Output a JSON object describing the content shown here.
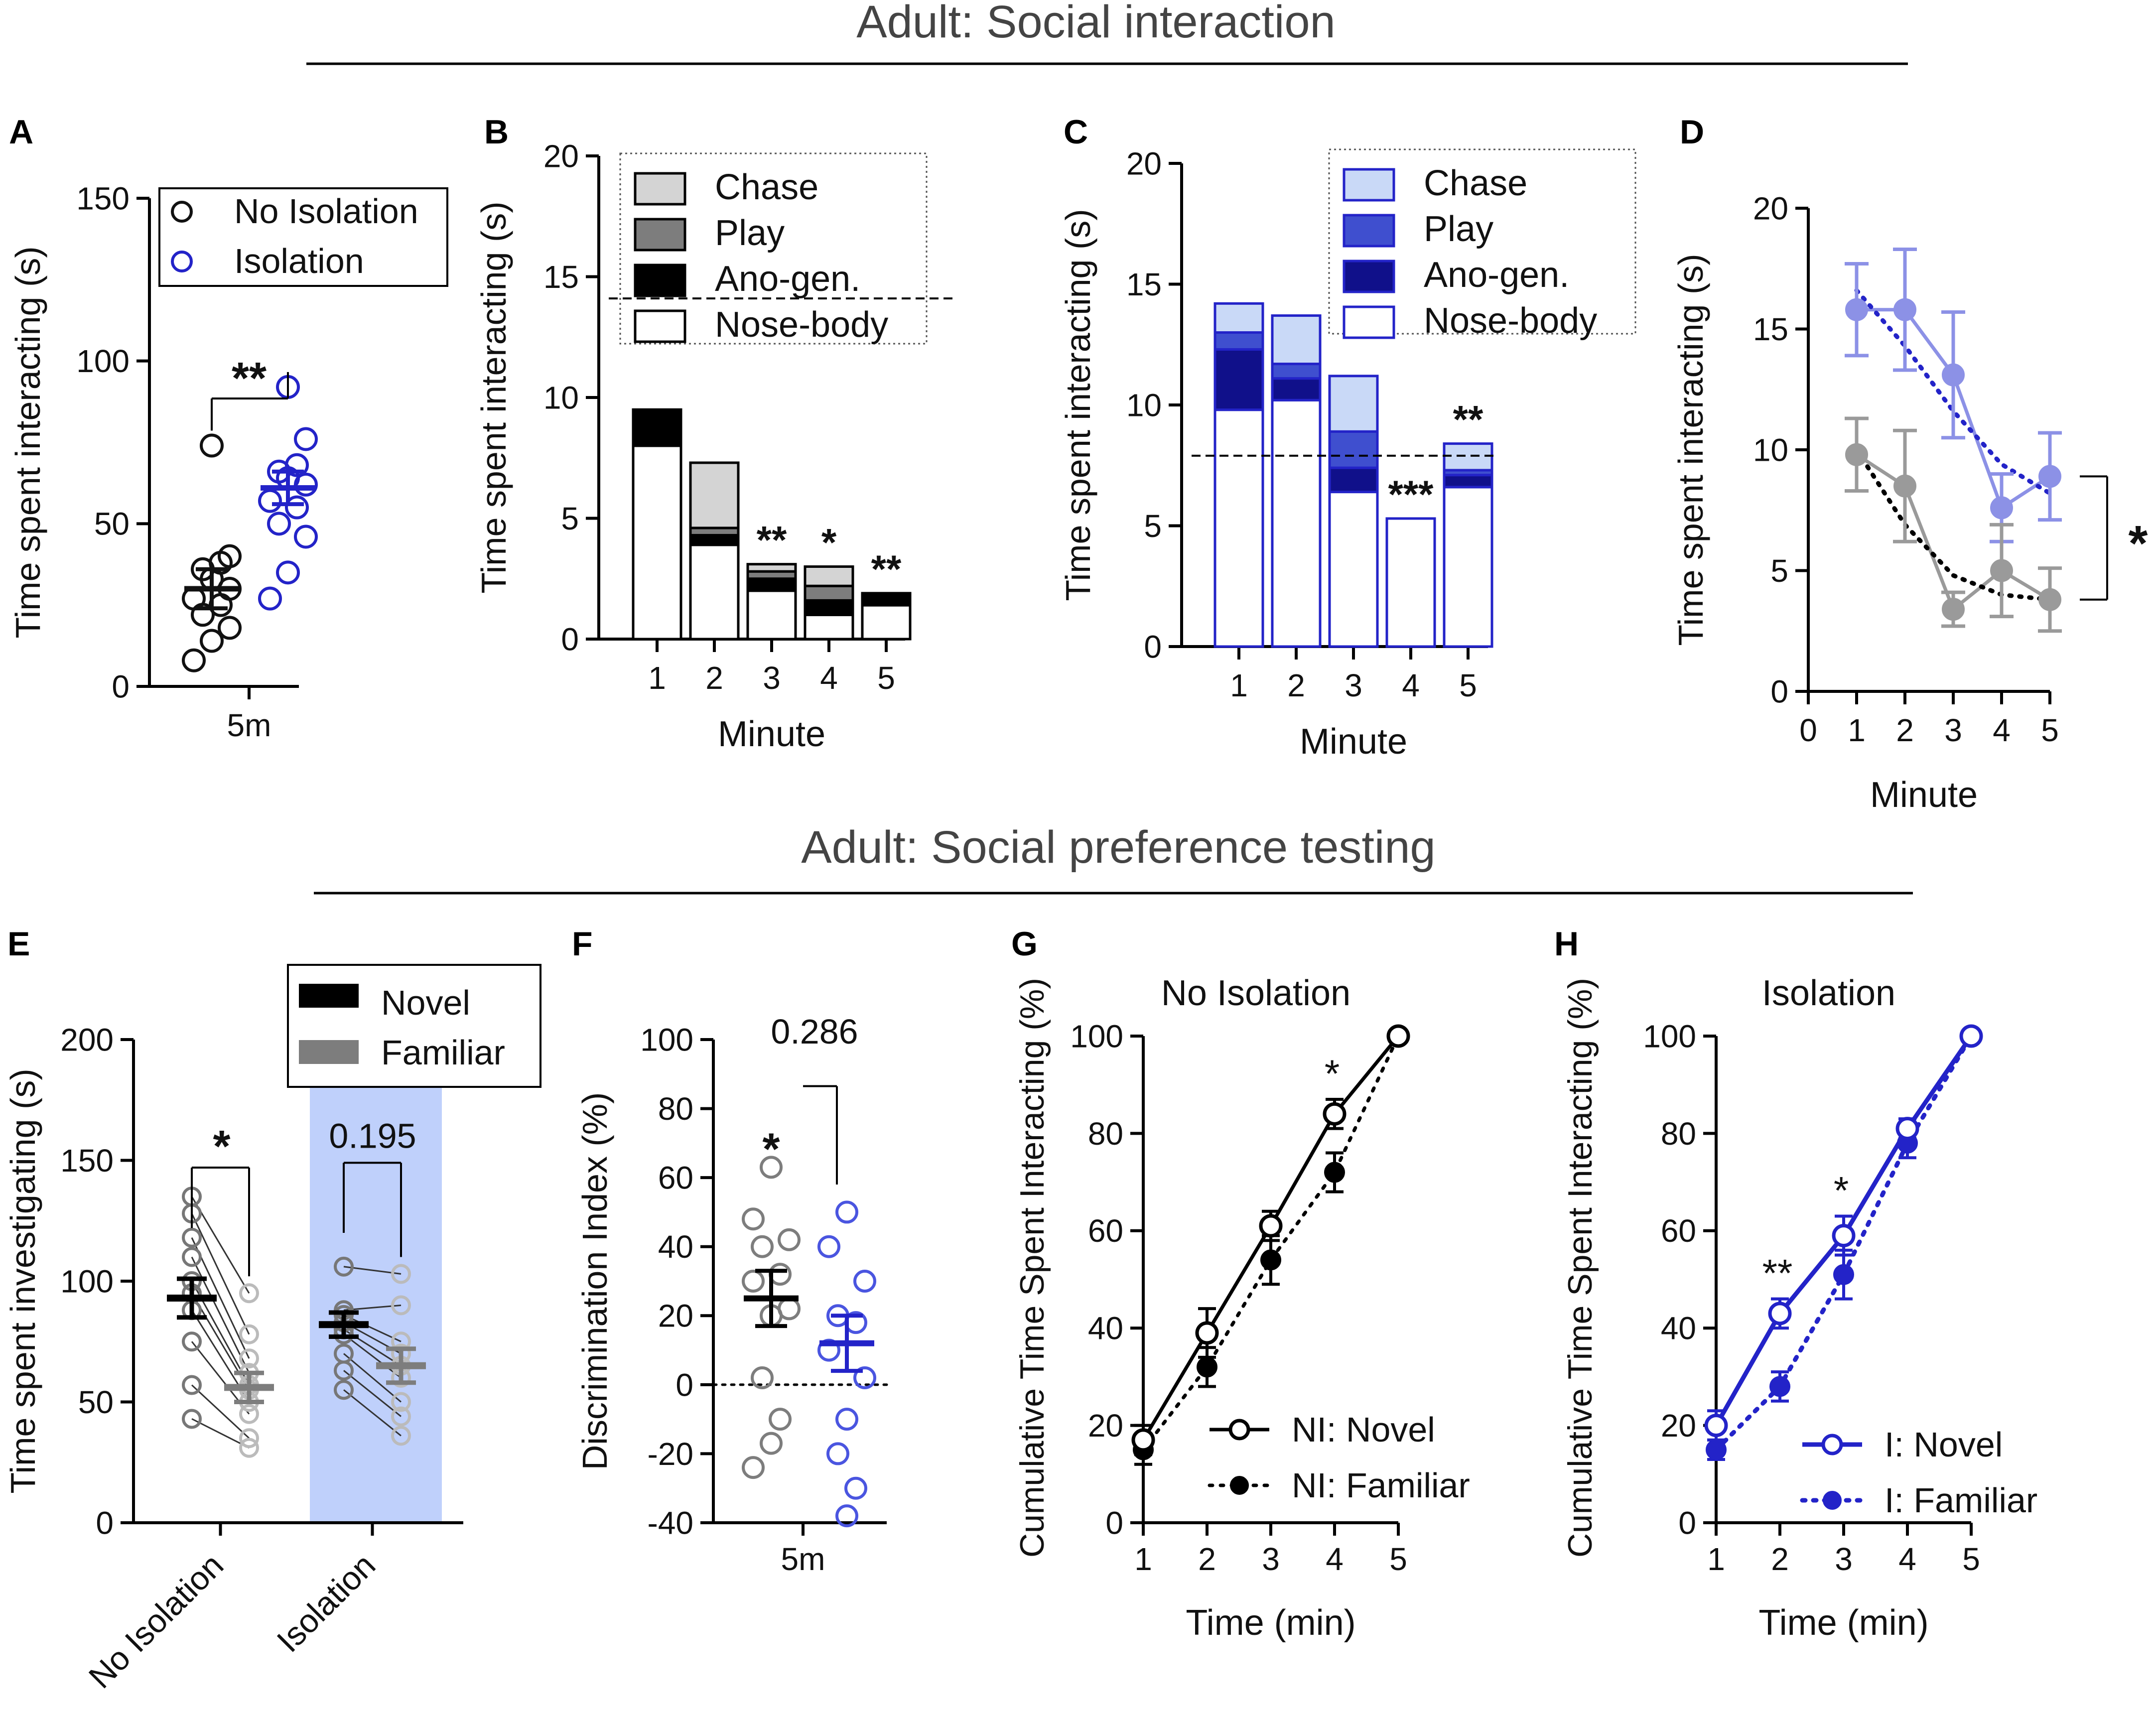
{
  "headings": {
    "top": "Adult: Social interaction",
    "bottom": "Adult: Social preference testing"
  },
  "colors": {
    "black": "#111111",
    "blue": "#2323c8",
    "blue_light": "#c9d9f7",
    "blue_mid": "#3f4fcf",
    "blue_dark": "#10108a",
    "blue_fade": "#8c91e6",
    "gray_light": "#d4d4d4",
    "gray_mid": "#7d7d7d",
    "gray_dot": "#9a9a9a",
    "band": "#bfd0fb"
  },
  "chart_data": [
    {
      "panel": "A",
      "type": "scatter",
      "xlabel": "5m",
      "ylabel": "Time spent interacting (s)",
      "ylim": [
        0,
        150
      ],
      "yticks": [
        0,
        50,
        100,
        150
      ],
      "legend": [
        "No Isolation",
        "Isolation"
      ],
      "significance": "**",
      "series": [
        {
          "name": "No Isolation",
          "values": [
            8,
            14,
            18,
            22,
            25,
            27,
            30,
            33,
            36,
            38,
            40,
            74
          ],
          "mean": 30,
          "sem": 6
        },
        {
          "name": "Isolation",
          "values": [
            27,
            35,
            46,
            50,
            55,
            57,
            62,
            64,
            66,
            68,
            76,
            92
          ],
          "mean": 61,
          "sem": 5
        }
      ]
    },
    {
      "panel": "B",
      "type": "bar",
      "stacked": true,
      "categories": [
        "1",
        "2",
        "3",
        "4",
        "5"
      ],
      "xlabel": "Minute",
      "ylabel": "Time spent interacting (s)",
      "ylim": [
        0,
        20
      ],
      "yticks": [
        0,
        5,
        10,
        15,
        20
      ],
      "reference_line": 14.1,
      "legend": [
        "Chase",
        "Play",
        "Ano-gen.",
        "Nose-body"
      ],
      "series": [
        {
          "name": "Nose-body",
          "values": [
            8.0,
            3.9,
            2.0,
            1.0,
            1.4
          ]
        },
        {
          "name": "Ano-gen.",
          "values": [
            1.5,
            0.4,
            0.5,
            0.6,
            0.5
          ]
        },
        {
          "name": "Play",
          "values": [
            0.0,
            0.3,
            0.3,
            0.6,
            0.0
          ]
        },
        {
          "name": "Chase",
          "values": [
            0.0,
            2.7,
            0.3,
            0.8,
            0.0
          ]
        }
      ],
      "annotations": [
        "",
        "",
        "**",
        "*",
        "**"
      ]
    },
    {
      "panel": "C",
      "type": "bar",
      "stacked": true,
      "categories": [
        "1",
        "2",
        "3",
        "4",
        "5"
      ],
      "xlabel": "Minute",
      "ylabel": "Time spent interacting (s)",
      "ylim": [
        0,
        20
      ],
      "yticks": [
        0,
        5,
        10,
        15,
        20
      ],
      "reference_line": 7.9,
      "legend": [
        "Chase",
        "Play",
        "Ano-gen.",
        "Nose-body"
      ],
      "series": [
        {
          "name": "Nose-body",
          "values": [
            9.8,
            10.2,
            6.4,
            5.3,
            6.6
          ]
        },
        {
          "name": "Ano-gen.",
          "values": [
            2.5,
            0.9,
            1.0,
            0.0,
            0.5
          ]
        },
        {
          "name": "Play",
          "values": [
            0.7,
            0.6,
            1.5,
            0.0,
            0.2
          ]
        },
        {
          "name": "Chase",
          "values": [
            1.2,
            2.0,
            2.3,
            0.0,
            1.1
          ]
        }
      ],
      "annotations": [
        "",
        "",
        "",
        "***",
        "**"
      ]
    },
    {
      "panel": "D",
      "type": "line",
      "xlabel": "Minute",
      "ylabel": "Time spent interacting (s)",
      "x": [
        1,
        2,
        3,
        4,
        5
      ],
      "xticks": [
        0,
        1,
        2,
        3,
        4,
        5
      ],
      "xlim": [
        0,
        5
      ],
      "ylim": [
        0,
        20
      ],
      "yticks": [
        0,
        5,
        10,
        15,
        20
      ],
      "significance": "*",
      "series": [
        {
          "name": "Isolation",
          "values": [
            15.8,
            15.8,
            13.1,
            7.6,
            8.9
          ],
          "err": [
            1.9,
            2.5,
            2.6,
            1.4,
            1.8
          ],
          "fit": [
            16.6,
            14.3,
            11.6,
            9.4,
            8.2
          ]
        },
        {
          "name": "No Isolation",
          "values": [
            9.8,
            8.5,
            3.4,
            5.0,
            3.8
          ],
          "err": [
            1.5,
            2.3,
            0.7,
            1.9,
            1.3
          ],
          "fit": [
            10.0,
            6.9,
            4.8,
            4.0,
            3.8
          ]
        }
      ]
    },
    {
      "panel": "E",
      "type": "scatter",
      "categories": [
        "No Isolation",
        "Isolation"
      ],
      "ylabel": "Time spent investigating (s)",
      "ylim": [
        0,
        200
      ],
      "yticks": [
        0,
        50,
        100,
        150,
        200
      ],
      "legend": [
        "Novel",
        "Familiar"
      ],
      "annotations": [
        "*",
        "0.195"
      ],
      "groups": [
        {
          "name": "No Isolation",
          "novel": [
            135,
            128,
            118,
            110,
            100,
            95,
            88,
            75,
            57,
            43
          ],
          "familiar": [
            95,
            78,
            68,
            62,
            57,
            55,
            50,
            45,
            35,
            31
          ],
          "novel_mean": 93,
          "novel_sem": 8,
          "familiar_mean": 56,
          "familiar_sem": 6
        },
        {
          "name": "Isolation",
          "novel": [
            106,
            88,
            86,
            83,
            80,
            78,
            70,
            63,
            55
          ],
          "familiar": [
            103,
            90,
            75,
            70,
            65,
            60,
            50,
            44,
            36
          ],
          "novel_mean": 82,
          "novel_sem": 5,
          "familiar_mean": 65,
          "familiar_sem": 7
        }
      ]
    },
    {
      "panel": "F",
      "type": "scatter",
      "xlabel": "5m",
      "ylabel": "Discrimination Index (%)",
      "ylim": [
        -40,
        100
      ],
      "yticks": [
        -40,
        -20,
        0,
        20,
        40,
        60,
        80,
        100
      ],
      "annotations": [
        "*",
        "0.286"
      ],
      "series": [
        {
          "name": "No Isolation",
          "values": [
            63,
            48,
            42,
            40,
            32,
            30,
            22,
            20,
            2,
            -10,
            -17,
            -24
          ],
          "mean": 25,
          "sem": 8
        },
        {
          "name": "Isolation",
          "values": [
            50,
            40,
            30,
            20,
            18,
            10,
            2,
            -10,
            -20,
            -30,
            -38
          ],
          "mean": 12,
          "sem": 8
        }
      ]
    },
    {
      "panel": "G",
      "type": "line",
      "title": "No Isolation",
      "xlabel": "Time (min)",
      "ylabel": "Cumulative Time Spent Interacting (%)",
      "x": [
        1,
        2,
        3,
        4,
        5
      ],
      "ylim": [
        0,
        100
      ],
      "yticks": [
        0,
        20,
        40,
        60,
        80,
        100
      ],
      "annotations": [
        "",
        "",
        "",
        "*",
        ""
      ],
      "series": [
        {
          "name": "NI: Novel",
          "values": [
            17,
            39,
            61,
            84,
            100
          ],
          "err": [
            3,
            5,
            3,
            3,
            0
          ]
        },
        {
          "name": "NI: Familiar",
          "values": [
            15,
            32,
            54,
            72,
            100
          ],
          "err": [
            3,
            4,
            5,
            4,
            0
          ]
        }
      ]
    },
    {
      "panel": "H",
      "type": "line",
      "title": "Isolation",
      "xlabel": "Time (min)",
      "ylabel": "Cumulative Time Spent Interacting (%)",
      "x": [
        1,
        2,
        3,
        4,
        5
      ],
      "ylim": [
        0,
        100
      ],
      "yticks": [
        0,
        20,
        40,
        60,
        80,
        100
      ],
      "annotations": [
        "",
        "**",
        "*",
        "",
        ""
      ],
      "series": [
        {
          "name": "I: Novel",
          "values": [
            20,
            43,
            59,
            81,
            100
          ],
          "err": [
            3,
            3,
            4,
            2,
            0
          ]
        },
        {
          "name": "I: Familiar",
          "values": [
            15,
            28,
            51,
            78,
            100
          ],
          "err": [
            2,
            3,
            5,
            3,
            0
          ]
        }
      ]
    }
  ]
}
